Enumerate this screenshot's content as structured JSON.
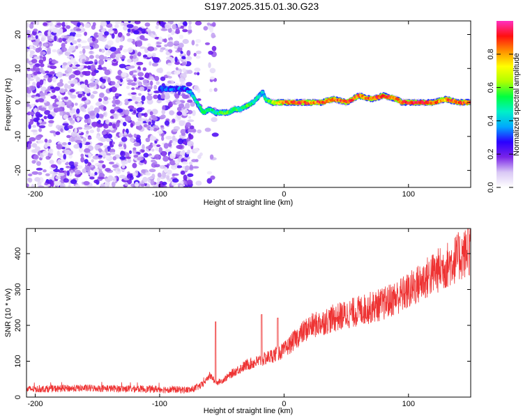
{
  "figure_title": "S197.2025.315.01.30.G23",
  "chart_data": [
    {
      "type": "heatmap",
      "name": "spectrogram",
      "title": "S197.2025.315.01.30.G23",
      "xlabel": "Height of straight line (km)",
      "ylabel": "Frequency (Hz)",
      "xlim": [
        -207,
        150
      ],
      "ylim": [
        -25,
        24
      ],
      "x_ticks": [
        -200,
        -100,
        0,
        100
      ],
      "y_ticks": [
        20,
        10,
        0,
        -10,
        -20
      ],
      "colorbar": {
        "label": "Normalized spectral amplitude",
        "range": [
          0,
          1
        ],
        "ticks": [
          0.0,
          0.2,
          0.4,
          0.6,
          0.8
        ],
        "colors": [
          "#ffffff",
          "#d9c8f5",
          "#7a24e8",
          "#2a00ff",
          "#00a8ff",
          "#00f0c8",
          "#00ff40",
          "#b0ff00",
          "#ffff00",
          "#ff9000",
          "#ff1010",
          "#ff30c0"
        ]
      },
      "noise_region_x": [
        -207,
        -55
      ],
      "ridge": {
        "x": [
          -100,
          -90,
          -80,
          -75,
          -70,
          -65,
          -60,
          -55,
          -50,
          -45,
          -40,
          -35,
          -30,
          -25,
          -20,
          -17,
          -15,
          -10,
          -5,
          0,
          10,
          20,
          30,
          40,
          50,
          55,
          60,
          70,
          80,
          90,
          95,
          100,
          110,
          120,
          130,
          140,
          150
        ],
        "y": [
          4,
          4,
          4,
          3,
          0,
          -3,
          -2,
          -3,
          -3,
          -3,
          -2,
          -2,
          -1,
          0,
          2,
          3,
          1,
          0,
          0,
          0,
          0,
          0,
          0,
          1,
          0,
          1,
          2,
          1,
          2,
          1,
          0,
          0,
          0,
          0,
          1,
          0,
          0
        ],
        "amp": [
          0.3,
          0.35,
          0.3,
          0.4,
          0.45,
          0.5,
          0.5,
          0.5,
          0.55,
          0.55,
          0.55,
          0.5,
          0.55,
          0.5,
          0.45,
          0.4,
          0.5,
          0.6,
          0.75,
          0.8,
          0.85,
          0.8,
          0.85,
          0.8,
          0.85,
          0.9,
          0.8,
          0.85,
          0.9,
          0.8,
          0.85,
          0.9,
          0.9,
          0.85,
          0.8,
          0.85,
          0.85
        ]
      }
    },
    {
      "type": "line",
      "name": "snr",
      "xlabel": "Height of straight line (km)",
      "ylabel": "SNR (10 * v/v)",
      "xlim": [
        -207,
        150
      ],
      "ylim": [
        0,
        470
      ],
      "x_ticks": [
        -200,
        -100,
        0,
        100
      ],
      "y_ticks": [
        0,
        100,
        200,
        300,
        400
      ],
      "color": "#ee3333",
      "trend": {
        "x": [
          -207,
          -160,
          -100,
          -75,
          -65,
          -60,
          -58,
          -55,
          -50,
          -40,
          -30,
          -20,
          -10,
          0,
          10,
          20,
          40,
          60,
          80,
          100,
          110,
          120,
          130,
          140,
          150
        ],
        "y": [
          22,
          25,
          22,
          20,
          35,
          60,
          55,
          40,
          45,
          70,
          90,
          100,
          115,
          130,
          165,
          195,
          220,
          240,
          260,
          295,
          320,
          345,
          365,
          390,
          410
        ]
      },
      "spikes": [
        {
          "x": -55,
          "y": 210
        },
        {
          "x": -18,
          "y": 230
        },
        {
          "x": -5,
          "y": 220
        },
        {
          "x": 148,
          "y": 470
        }
      ]
    }
  ]
}
